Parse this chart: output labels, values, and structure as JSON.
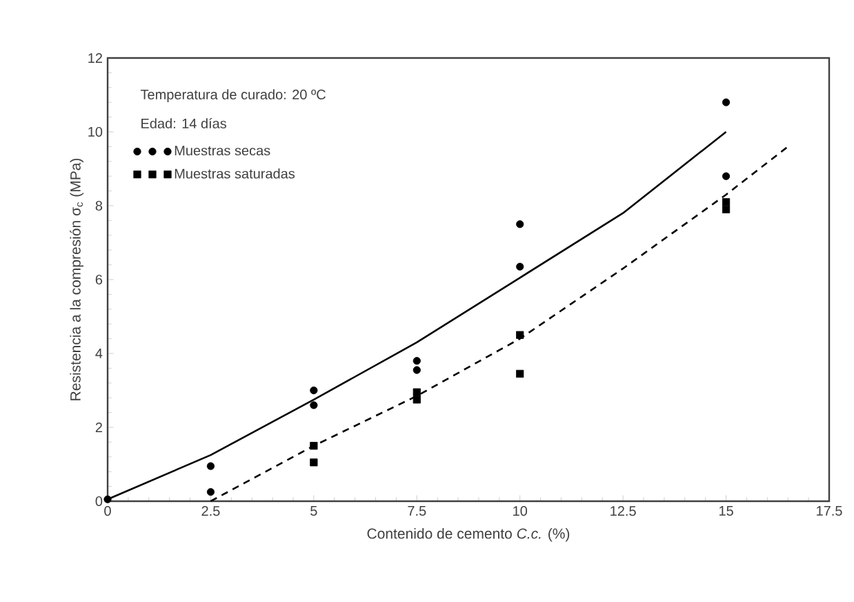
{
  "chart_data": {
    "type": "scatter",
    "xlabel": "Contenido de cemento *C.c.* (%)",
    "ylabel": "Resistencia a la compresión σ$_{c}$ (MPa)",
    "annotations": [
      "Temperatura de curado: 20 ºC",
      "Edad: 14 días"
    ],
    "xlim": [
      0,
      17.5
    ],
    "ylim": [
      0,
      12
    ],
    "xticks": [
      0,
      2.5,
      5,
      7.5,
      10,
      12.5,
      15,
      17.5
    ],
    "yticks": [
      0,
      2,
      4,
      6,
      8,
      10,
      12
    ],
    "legend": "top left",
    "grid": false,
    "series": [
      {
        "name": "Muestras secas",
        "marker": "circle",
        "color": "#000000",
        "x": [
          0,
          2.5,
          2.5,
          5,
          5,
          7.5,
          7.5,
          10,
          10,
          15,
          15
        ],
        "values": [
          0.05,
          0.95,
          0.25,
          3.0,
          2.6,
          3.8,
          3.55,
          7.5,
          6.35,
          10.8,
          8.8
        ]
      },
      {
        "name": "Muestras saturadas",
        "marker": "square",
        "color": "#000000",
        "x": [
          5,
          5,
          7.5,
          7.5,
          10,
          10,
          15,
          15
        ],
        "values": [
          1.5,
          1.05,
          2.95,
          2.75,
          4.5,
          3.45,
          8.1,
          7.9
        ]
      },
      {
        "type": "line",
        "line_style": "solid",
        "marker": "none",
        "color": "#000000",
        "x": [
          0,
          2.5,
          5,
          7.5,
          10,
          12.5,
          15
        ],
        "values": [
          0.05,
          1.25,
          2.75,
          4.3,
          6.05,
          7.8,
          10.0
        ]
      },
      {
        "type": "line",
        "line_style": "dashed",
        "marker": "none",
        "color": "#000000",
        "x": [
          2.5,
          5,
          7.5,
          10,
          12.5,
          15,
          16.5
        ],
        "values": [
          0.0,
          1.5,
          2.85,
          4.4,
          6.3,
          8.3,
          9.6
        ]
      }
    ]
  }
}
